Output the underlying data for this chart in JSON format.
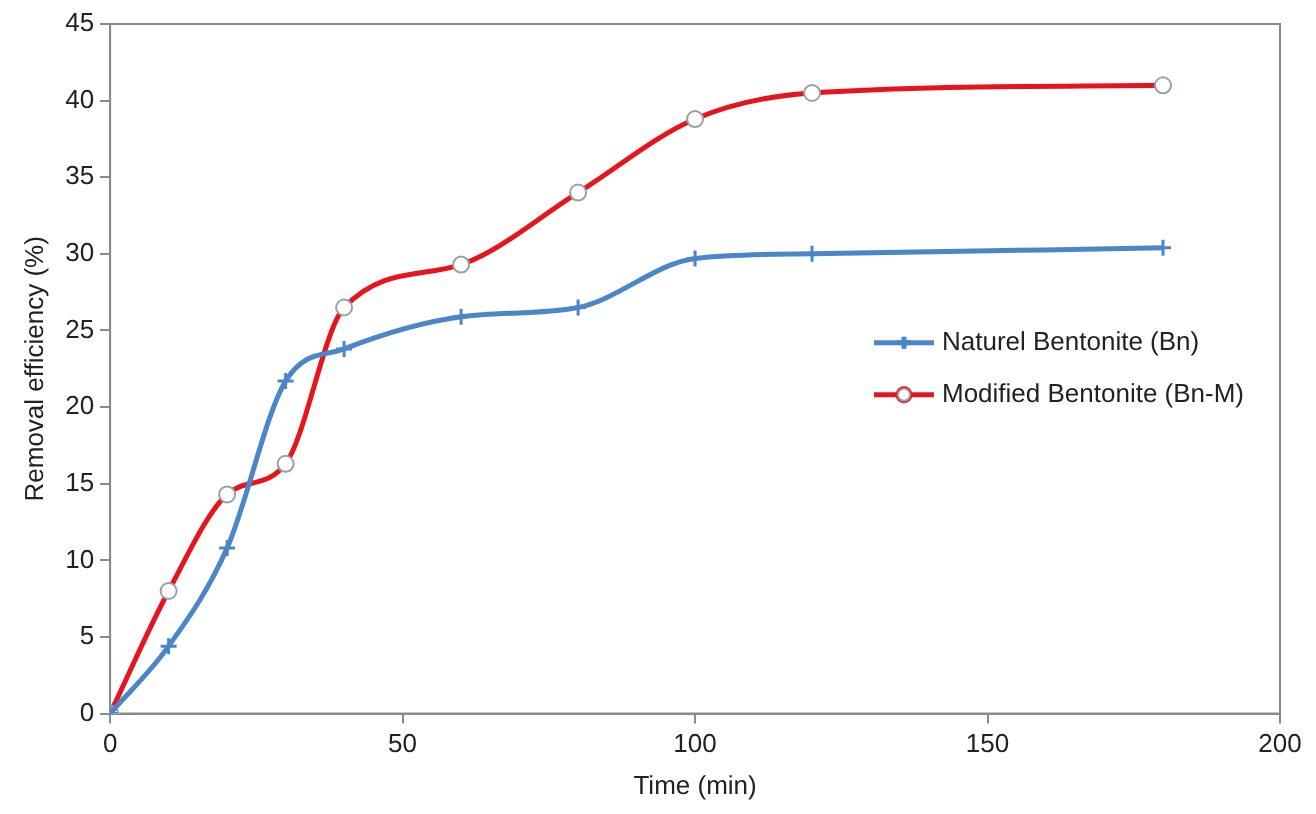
{
  "chart_data": {
    "type": "line",
    "xlabel": "Time (min)",
    "ylabel": "Removal efficiency (%)",
    "x": [
      0,
      10,
      20,
      30,
      40,
      60,
      80,
      100,
      120,
      180
    ],
    "series": [
      {
        "name": "Naturel Bentonite (Bn)",
        "color": "#4a86c8",
        "marker": "cross",
        "values": [
          0,
          4.4,
          10.8,
          21.7,
          23.8,
          25.9,
          26.5,
          29.7,
          30,
          30.4
        ]
      },
      {
        "name": "Modified Bentonite (Bn-M)",
        "color": "#e8141c",
        "marker": "circle",
        "values": [
          0,
          8,
          14.3,
          16.3,
          26.5,
          29.3,
          34,
          38.8,
          40.5,
          41
        ]
      }
    ],
    "xlim": [
      0,
      200
    ],
    "xticks": [
      0,
      50,
      100,
      150,
      200
    ],
    "ylim": [
      0,
      45
    ],
    "yticks": [
      0,
      5,
      10,
      15,
      20,
      25,
      30,
      35,
      40,
      45
    ],
    "grid": false,
    "legend": "right"
  }
}
